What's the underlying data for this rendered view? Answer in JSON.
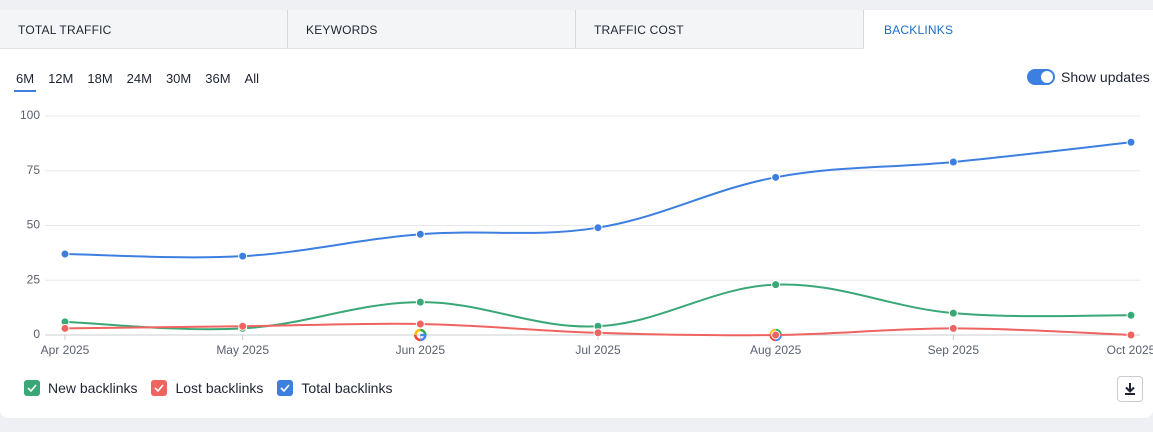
{
  "tabs": [
    "TOTAL TRAFFIC",
    "KEYWORDS",
    "TRAFFIC COST",
    "BACKLINKS"
  ],
  "active_tab": 3,
  "ranges": [
    "6M",
    "12M",
    "18M",
    "24M",
    "30M",
    "36M",
    "All"
  ],
  "active_range": 0,
  "toggle_label": "Show updates",
  "chart_data": {
    "type": "line",
    "categories": [
      "Apr 2025",
      "May 2025",
      "Jun 2025",
      "Jul 2025",
      "Aug 2025",
      "Sep 2025",
      "Oct 2025"
    ],
    "series": [
      {
        "name": "New backlinks",
        "color": "#3aa876",
        "values": [
          6,
          3,
          15,
          4,
          23,
          10,
          9
        ]
      },
      {
        "name": "Lost backlinks",
        "color": "#ef6461",
        "values": [
          3,
          4,
          5,
          1,
          0,
          3,
          0
        ]
      },
      {
        "name": "Total backlinks",
        "color": "#3d7fe0",
        "values": [
          37,
          36,
          46,
          49,
          72,
          79,
          88
        ]
      }
    ],
    "ylim": [
      0,
      100
    ],
    "yticks": [
      0,
      25,
      50,
      75,
      100
    ],
    "grid": true
  }
}
